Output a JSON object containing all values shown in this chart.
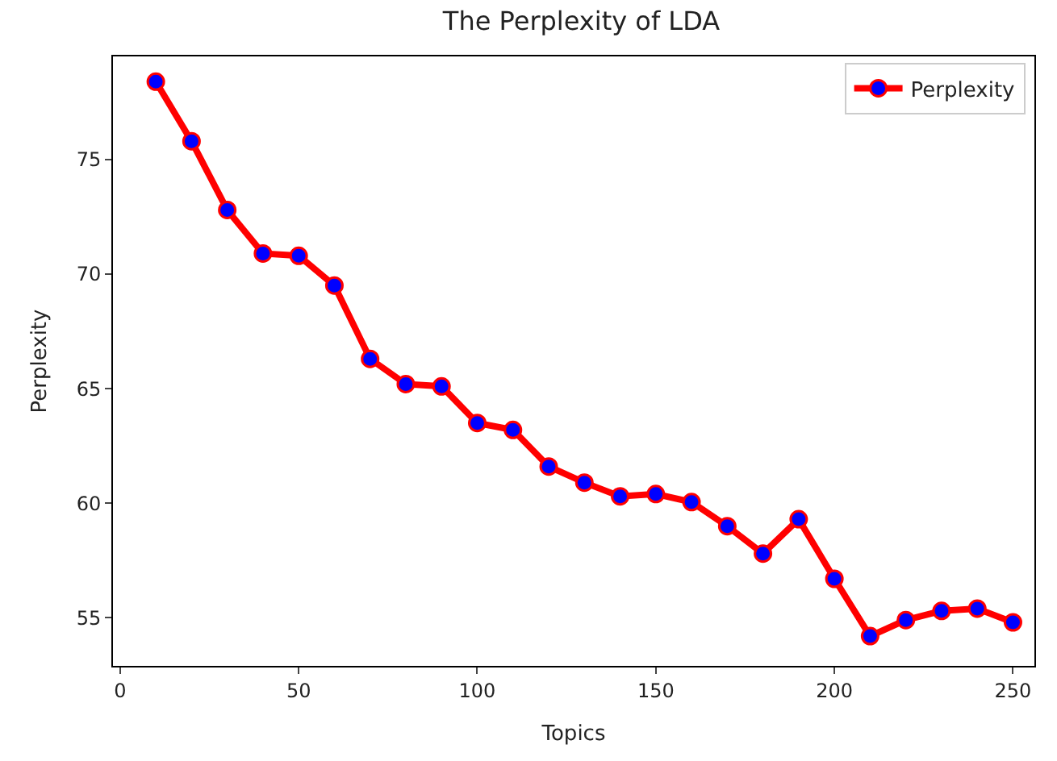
{
  "chart_data": {
    "type": "line",
    "title": "The Perplexity of LDA",
    "xlabel": "Topics",
    "ylabel": "Perplexity",
    "x": [
      10,
      20,
      30,
      40,
      50,
      60,
      70,
      80,
      90,
      100,
      110,
      120,
      130,
      140,
      150,
      160,
      170,
      180,
      190,
      200,
      210,
      220,
      230,
      240,
      250
    ],
    "series": [
      {
        "name": "Perplexity",
        "color": "#ff0000",
        "values": [
          78.4,
          75.8,
          72.8,
          70.9,
          70.8,
          69.5,
          66.3,
          65.2,
          65.1,
          63.5,
          63.2,
          61.6,
          60.9,
          60.3,
          60.4,
          60.05,
          59.0,
          57.8,
          59.3,
          56.7,
          54.2,
          54.9,
          55.3,
          55.4,
          54.8
        ]
      }
    ],
    "xlim": [
      -2,
      256
    ],
    "xticks": [
      0,
      50,
      100,
      150,
      200,
      250
    ],
    "ylim": [
      52.9,
      79.5
    ],
    "yticks": [
      55,
      60,
      65,
      70,
      75
    ],
    "legend": "top right",
    "marker": "circle",
    "line_style": "solid"
  }
}
